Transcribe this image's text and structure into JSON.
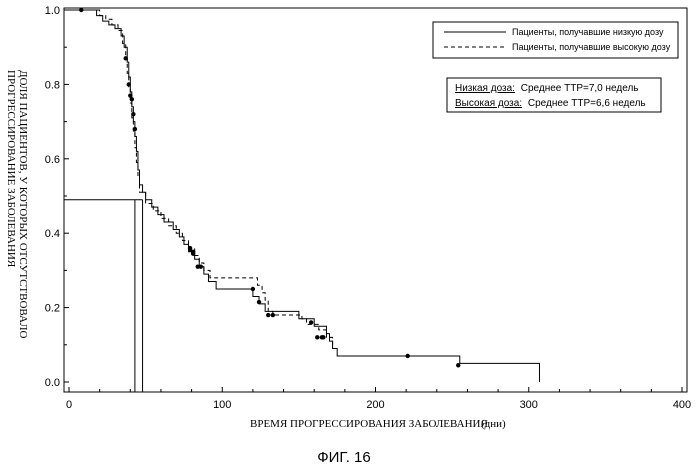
{
  "figure_label": "ФИГ. 16",
  "chart_data": {
    "type": "line",
    "title": "",
    "xlabel": "ВРЕМЯ ПРОГРЕССИРОВАНИЯ ЗАБОЛЕВАНИЯ",
    "xlabel_unit": "(дни)",
    "ylabel_line1": "ДОЛЯ ПАЦИЕНТОВ, У КОТОРЫХ ОТСУТСТВОВАЛО",
    "ylabel_line2": "ПРОГРЕССИРОВАНИЕ ЗАБОЛЕВАНИЯ",
    "xlim": [
      -3,
      400
    ],
    "ylim": [
      -0.01,
      1.0
    ],
    "x_ticks": [
      0,
      100,
      200,
      300,
      400
    ],
    "x_tick_labels": [
      "0",
      "100",
      "200",
      "300",
      "400"
    ],
    "y_ticks": [
      0.0,
      0.2,
      0.4,
      0.6,
      0.8,
      1.0
    ],
    "y_tick_labels": [
      "0.0",
      "0.2",
      "0.4",
      "0.6",
      "0.8",
      "1.0"
    ],
    "legend_position": "top-right",
    "series": [
      {
        "name": "Пациенты, получавшие низкую дозу",
        "style": "solid",
        "color": "#000000",
        "steps": [
          [
            0,
            1.0
          ],
          [
            18,
            0.985
          ],
          [
            22,
            0.97
          ],
          [
            26,
            0.96
          ],
          [
            30,
            0.95
          ],
          [
            34,
            0.93
          ],
          [
            36,
            0.9
          ],
          [
            38,
            0.86
          ],
          [
            39,
            0.82
          ],
          [
            40,
            0.78
          ],
          [
            41,
            0.74
          ],
          [
            42,
            0.7
          ],
          [
            43,
            0.66
          ],
          [
            44,
            0.62
          ],
          [
            45,
            0.57
          ],
          [
            46,
            0.53
          ],
          [
            48,
            0.51
          ],
          [
            50,
            0.49
          ],
          [
            54,
            0.47
          ],
          [
            58,
            0.45
          ],
          [
            62,
            0.43
          ],
          [
            68,
            0.41
          ],
          [
            72,
            0.39
          ],
          [
            75,
            0.37
          ],
          [
            78,
            0.35
          ],
          [
            82,
            0.33
          ],
          [
            85,
            0.31
          ],
          [
            88,
            0.29
          ],
          [
            91,
            0.27
          ],
          [
            96,
            0.25
          ],
          [
            120,
            0.23
          ],
          [
            124,
            0.21
          ],
          [
            128,
            0.19
          ],
          [
            150,
            0.17
          ],
          [
            160,
            0.15
          ],
          [
            168,
            0.13
          ],
          [
            170,
            0.11
          ],
          [
            172,
            0.09
          ],
          [
            175,
            0.07
          ],
          [
            255,
            0.05
          ],
          [
            307,
            0.0
          ]
        ],
        "censored": [
          [
            8,
            1.0
          ],
          [
            41,
            0.76
          ],
          [
            42,
            0.72
          ],
          [
            43,
            0.68
          ],
          [
            79,
            0.355
          ],
          [
            81,
            0.345
          ],
          [
            84,
            0.31
          ],
          [
            120,
            0.25
          ],
          [
            124,
            0.215
          ],
          [
            158,
            0.16
          ],
          [
            165,
            0.12
          ],
          [
            221,
            0.07
          ],
          [
            254,
            0.045
          ]
        ],
        "vertical_drop": [
          43,
          0.49
        ]
      },
      {
        "name": "Пациенты, получавшие высокую дозу",
        "style": "dashed",
        "color": "#000000",
        "steps": [
          [
            0,
            1.0
          ],
          [
            20,
            0.985
          ],
          [
            24,
            0.975
          ],
          [
            28,
            0.96
          ],
          [
            32,
            0.945
          ],
          [
            35,
            0.91
          ],
          [
            37,
            0.87
          ],
          [
            38,
            0.83
          ],
          [
            39,
            0.79
          ],
          [
            40,
            0.75
          ],
          [
            41,
            0.71
          ],
          [
            42,
            0.67
          ],
          [
            43,
            0.63
          ],
          [
            44,
            0.59
          ],
          [
            45,
            0.55
          ],
          [
            46,
            0.51
          ],
          [
            50,
            0.48
          ],
          [
            55,
            0.46
          ],
          [
            60,
            0.44
          ],
          [
            65,
            0.42
          ],
          [
            70,
            0.4
          ],
          [
            74,
            0.38
          ],
          [
            78,
            0.36
          ],
          [
            82,
            0.34
          ],
          [
            85,
            0.32
          ],
          [
            88,
            0.3
          ],
          [
            92,
            0.28
          ],
          [
            123,
            0.26
          ],
          [
            126,
            0.24
          ],
          [
            128,
            0.22
          ],
          [
            130,
            0.19
          ],
          [
            133,
            0.18
          ],
          [
            152,
            0.17
          ],
          [
            155,
            0.155
          ],
          [
            163,
            0.14
          ],
          [
            168,
            0.12
          ],
          [
            172,
            0.1
          ]
        ],
        "censored": [
          [
            37,
            0.87
          ],
          [
            39,
            0.8
          ],
          [
            40,
            0.77
          ],
          [
            79,
            0.36
          ],
          [
            81,
            0.35
          ],
          [
            86,
            0.31
          ],
          [
            130,
            0.18
          ],
          [
            133,
            0.18
          ],
          [
            162,
            0.12
          ],
          [
            166,
            0.12
          ]
        ],
        "vertical_drop": [
          48,
          0.49
        ]
      }
    ],
    "median_line_y": 0.49
  },
  "stats": {
    "low_label": "Низкая доза:",
    "low_value": "Среднее ТТР=7,0 недель",
    "high_label": "Высокая доза:",
    "high_value": "Среднее ТТР=6,6 недель"
  }
}
